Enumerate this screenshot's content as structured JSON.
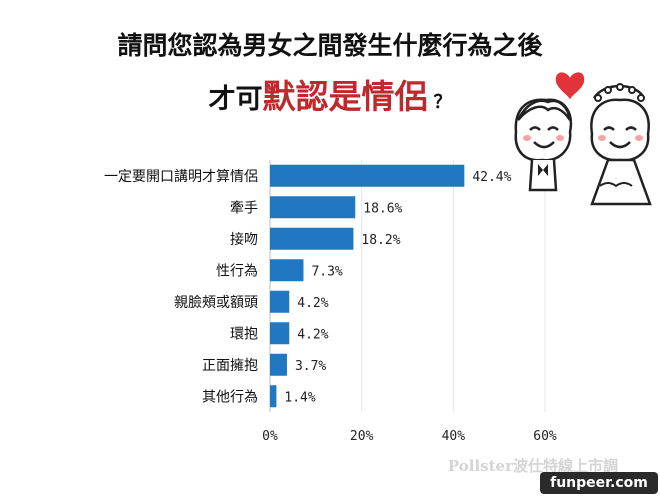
{
  "header": {
    "title_line1": "請問您認為男女之間發生什麼行為之後",
    "title_line2_prefix": "才可",
    "title_line2_highlight": "默認是情侶",
    "title_line2_suffix": "？"
  },
  "watermark": "Pollster波仕特線上市調",
  "badge": "funpeer.com",
  "colors": {
    "bar": "#1f78c1",
    "highlight": "#c0282d",
    "heart": "#e2323a"
  },
  "chart_data": {
    "type": "bar",
    "orientation": "horizontal",
    "categories": [
      "一定要開口講明才算情侶",
      "牽手",
      "接吻",
      "性行為",
      "親臉頰或額頭",
      "環抱",
      "正面擁抱",
      "其他行為"
    ],
    "values": [
      42.4,
      18.6,
      18.2,
      7.3,
      4.2,
      4.2,
      3.7,
      1.4
    ],
    "value_labels": [
      "42.4%",
      "18.6%",
      "18.2%",
      "7.3%",
      "4.2%",
      "4.2%",
      "3.7%",
      "1.4%"
    ],
    "xlim": [
      0,
      60
    ],
    "xticks": [
      0,
      20,
      40,
      60
    ],
    "xtick_labels": [
      "0%",
      "20%",
      "40%",
      "60%"
    ],
    "grid": true
  }
}
